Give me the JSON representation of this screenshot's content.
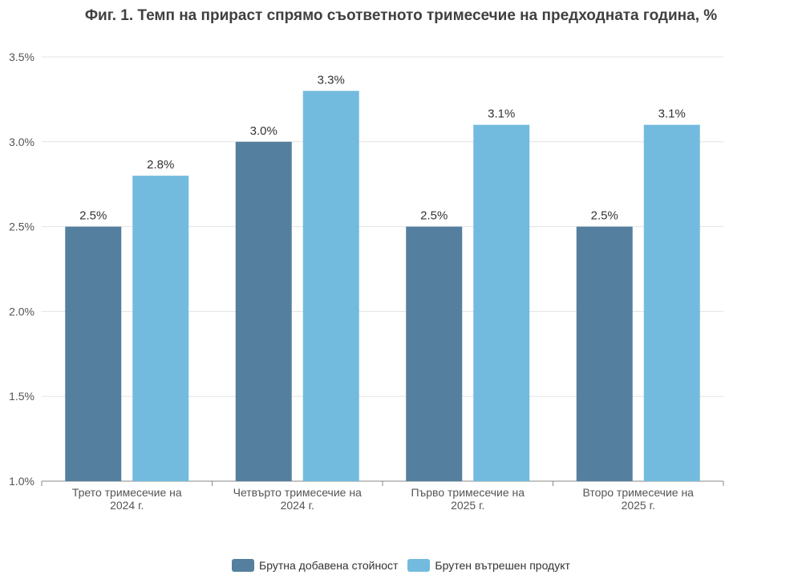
{
  "chart_data": {
    "type": "bar",
    "title": "Фиг. 1. Темп на прираст спрямо съответното тримесечие на предходната година, %",
    "categories": [
      [
        "Трето тримесечие на",
        "2024 г."
      ],
      [
        "Четвърто тримесечие на",
        "2024 г."
      ],
      [
        "Първо тримесечие на",
        "2025 г."
      ],
      [
        "Второ тримесечие на",
        "2025 г."
      ]
    ],
    "series": [
      {
        "name": "Брутна добавена стойност",
        "values": [
          2.5,
          3.0,
          2.5,
          2.5
        ],
        "color": "#557f9e"
      },
      {
        "name": "Брутен вътрешен продукт",
        "values": [
          2.8,
          3.3,
          3.1,
          3.1
        ],
        "color": "#72bbdf"
      }
    ],
    "ylim": [
      1.0,
      3.5
    ],
    "yticks": [
      "1.0%",
      "1.5%",
      "2.0%",
      "2.5%",
      "3.0%",
      "3.5%"
    ],
    "data_labels": [
      [
        "2.5%",
        "3.0%",
        "2.5%",
        "2.5%"
      ],
      [
        "2.8%",
        "3.3%",
        "3.1%",
        "3.1%"
      ]
    ],
    "grid": true,
    "legend_position": "bottom"
  }
}
